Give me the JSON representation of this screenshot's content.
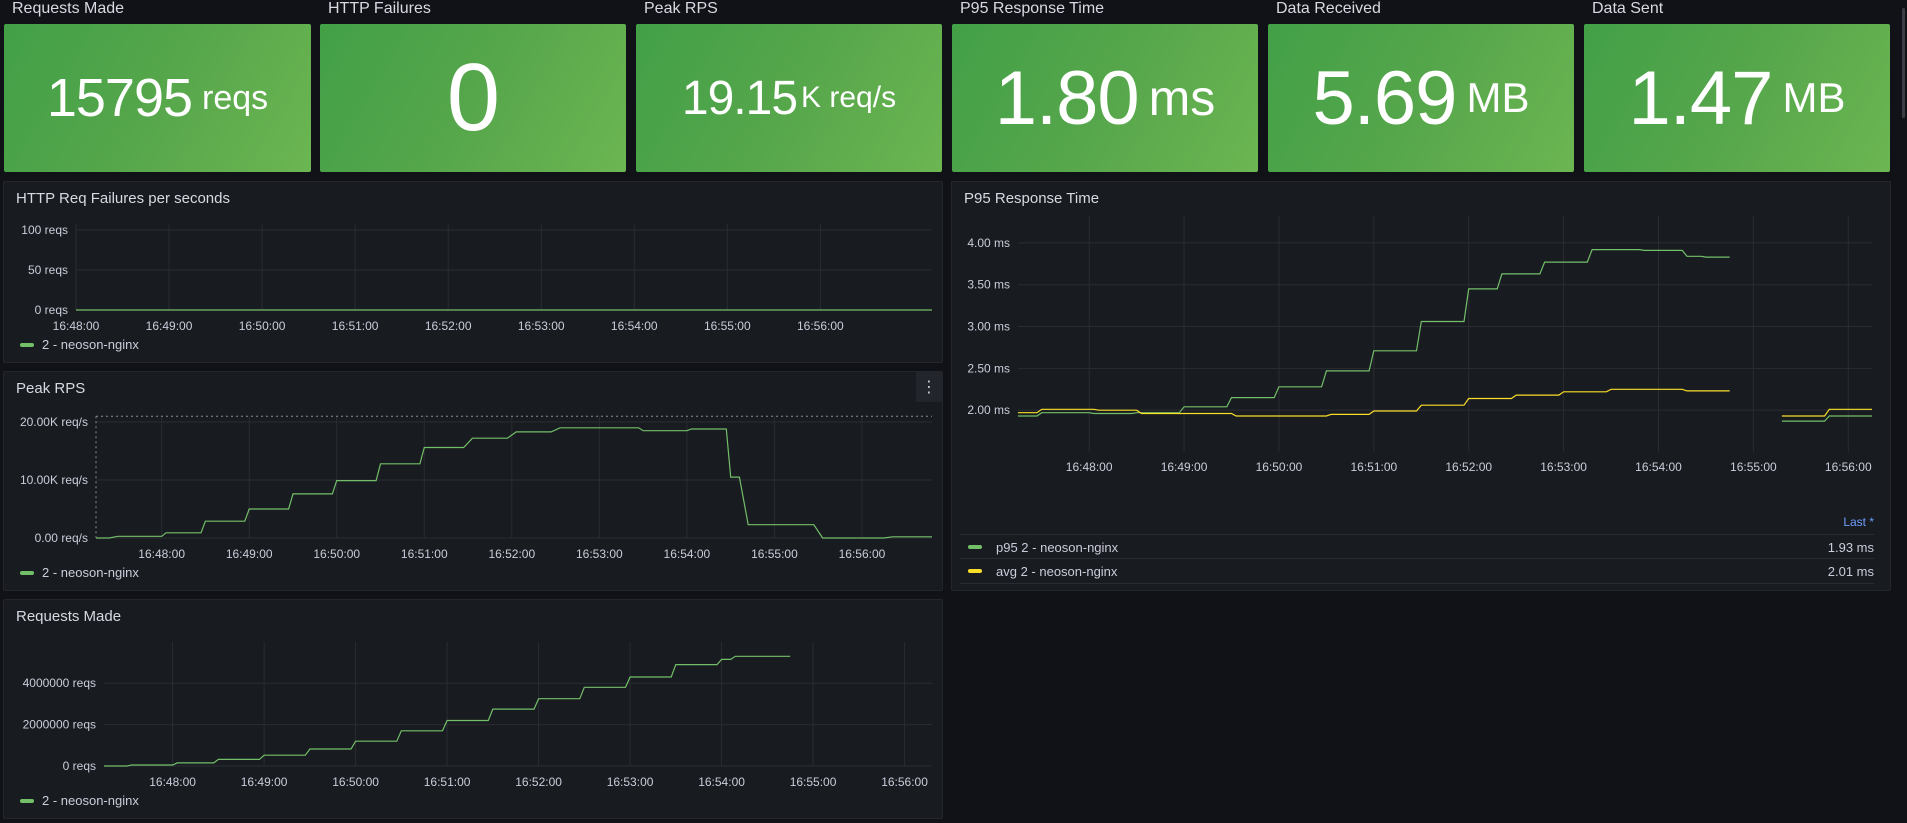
{
  "stats": [
    {
      "title": "Requests Made",
      "value": "15795",
      "unit": "reqs"
    },
    {
      "title": "HTTP Failures",
      "value": "0",
      "unit": ""
    },
    {
      "title": "Peak RPS",
      "value": "19.15",
      "unit": "K req/s"
    },
    {
      "title": "P95 Response Time",
      "value": "1.80",
      "unit": "ms"
    },
    {
      "title": "Data Received",
      "value": "5.69",
      "unit": "MB"
    },
    {
      "title": "Data Sent",
      "value": "1.47",
      "unit": "MB"
    }
  ],
  "panels": {
    "failures": {
      "title": "HTTP Req Failures per seconds"
    },
    "peak_rps": {
      "title": "Peak RPS"
    },
    "requests": {
      "title": "Requests Made"
    },
    "p95": {
      "title": "P95 Response Time",
      "last_header": "Last *"
    }
  },
  "colors": {
    "green": "#73bf69",
    "yellow": "#fade2a",
    "grid": "#2a2c33",
    "stat_bg": "#56a64b"
  },
  "icons": {
    "panel_menu": "vertical-ellipsis-icon"
  },
  "menu_glyph": "⋮",
  "chart_data": [
    {
      "id": "failures",
      "type": "line",
      "title": "HTTP Req Failures per seconds",
      "x": [
        "16:48:00",
        "16:49:00",
        "16:50:00",
        "16:51:00",
        "16:52:00",
        "16:53:00",
        "16:54:00",
        "16:55:00",
        "16:56:00"
      ],
      "xlim": [
        0,
        9.2
      ],
      "ylim": [
        0,
        100
      ],
      "yticks": [
        {
          "v": 100,
          "label": "100 reqs"
        },
        {
          "v": 50,
          "label": "50 reqs"
        },
        {
          "v": 0,
          "label": "0 reqs"
        }
      ],
      "series": [
        {
          "name": "2 - neoson-nginx",
          "color": "#73bf69",
          "points": [
            [
              0,
              0
            ],
            [
              9.2,
              0
            ]
          ]
        }
      ]
    },
    {
      "id": "peak_rps",
      "type": "line",
      "title": "Peak RPS",
      "x": [
        "16:48:00",
        "16:49:00",
        "16:50:00",
        "16:51:00",
        "16:52:00",
        "16:53:00",
        "16:54:00",
        "16:55:00",
        "16:56:00"
      ],
      "xlim": [
        -0.75,
        8.8
      ],
      "ylim": [
        0,
        20000
      ],
      "threshold": 21000,
      "yticks": [
        {
          "v": 20000,
          "label": "20.00K req/s"
        },
        {
          "v": 10000,
          "label": "10.00K req/s"
        },
        {
          "v": 0,
          "label": "0.00 req/s"
        }
      ],
      "series": [
        {
          "name": "2 - neoson-nginx",
          "color": "#73bf69",
          "points": [
            [
              -0.75,
              0
            ],
            [
              -0.6,
              0
            ],
            [
              -0.5,
              300
            ],
            [
              0,
              300
            ],
            [
              0.05,
              900
            ],
            [
              0.45,
              900
            ],
            [
              0.5,
              2900
            ],
            [
              0.95,
              2900
            ],
            [
              1,
              5000
            ],
            [
              1.45,
              5000
            ],
            [
              1.5,
              7600
            ],
            [
              1.95,
              7600
            ],
            [
              2,
              9900
            ],
            [
              2.45,
              9900
            ],
            [
              2.5,
              12800
            ],
            [
              2.95,
              12800
            ],
            [
              3,
              15600
            ],
            [
              3.45,
              15600
            ],
            [
              3.55,
              17200
            ],
            [
              3.95,
              17200
            ],
            [
              4.05,
              18300
            ],
            [
              4.45,
              18300
            ],
            [
              4.55,
              19000
            ],
            [
              5.45,
              19000
            ],
            [
              5.5,
              18500
            ],
            [
              6,
              18500
            ],
            [
              6.05,
              18800
            ],
            [
              6.45,
              18800
            ],
            [
              6.5,
              10500
            ],
            [
              6.6,
              10500
            ],
            [
              6.7,
              2300
            ],
            [
              7.45,
              2300
            ],
            [
              7.55,
              0
            ],
            [
              8.25,
              0
            ],
            [
              8.35,
              200
            ],
            [
              8.8,
              200
            ]
          ]
        }
      ]
    },
    {
      "id": "requests",
      "type": "line",
      "title": "Requests Made",
      "x": [
        "16:48:00",
        "16:49:00",
        "16:50:00",
        "16:51:00",
        "16:52:00",
        "16:53:00",
        "16:54:00",
        "16:55:00",
        "16:56:00"
      ],
      "xlim": [
        -0.75,
        8.3
      ],
      "ylim": [
        0,
        5700000
      ],
      "yticks": [
        {
          "v": 4000000,
          "label": "4000000 reqs"
        },
        {
          "v": 2000000,
          "label": "2000000 reqs"
        },
        {
          "v": 0,
          "label": "0 reqs"
        }
      ],
      "series": [
        {
          "name": "2 - neoson-nginx",
          "color": "#73bf69",
          "points": [
            [
              -0.75,
              0
            ],
            [
              -0.5,
              0
            ],
            [
              -0.45,
              50000
            ],
            [
              0,
              50000
            ],
            [
              0.05,
              150000
            ],
            [
              0.45,
              150000
            ],
            [
              0.5,
              320000
            ],
            [
              0.95,
              320000
            ],
            [
              1,
              520000
            ],
            [
              1.45,
              520000
            ],
            [
              1.5,
              820000
            ],
            [
              1.95,
              820000
            ],
            [
              2,
              1200000
            ],
            [
              2.45,
              1200000
            ],
            [
              2.5,
              1700000
            ],
            [
              2.95,
              1700000
            ],
            [
              3,
              2200000
            ],
            [
              3.45,
              2200000
            ],
            [
              3.5,
              2750000
            ],
            [
              3.95,
              2750000
            ],
            [
              4,
              3250000
            ],
            [
              4.45,
              3250000
            ],
            [
              4.5,
              3800000
            ],
            [
              4.95,
              3800000
            ],
            [
              5,
              4300000
            ],
            [
              5.45,
              4300000
            ],
            [
              5.5,
              4900000
            ],
            [
              5.95,
              4900000
            ],
            [
              6,
              5150000
            ],
            [
              6.1,
              5150000
            ],
            [
              6.15,
              5300000
            ],
            [
              6.75,
              5300000
            ]
          ]
        }
      ]
    },
    {
      "id": "p95",
      "type": "line",
      "title": "P95 Response Time",
      "x": [
        "16:48:00",
        "16:49:00",
        "16:50:00",
        "16:51:00",
        "16:52:00",
        "16:53:00",
        "16:54:00",
        "16:55:00",
        "16:56:00"
      ],
      "xlim": [
        -0.75,
        8.25
      ],
      "ylim": [
        1.5,
        4.25
      ],
      "yticks": [
        {
          "v": 4.0,
          "label": "4.00 ms"
        },
        {
          "v": 3.5,
          "label": "3.50 ms"
        },
        {
          "v": 3.0,
          "label": "3.00 ms"
        },
        {
          "v": 2.5,
          "label": "2.50 ms"
        },
        {
          "v": 2.0,
          "label": "2.00 ms"
        }
      ],
      "series": [
        {
          "name": "p95 2 - neoson-nginx",
          "last": "1.93 ms",
          "color": "#73bf69",
          "segments": [
            [
              [
                -0.75,
                1.93
              ],
              [
                -0.55,
                1.93
              ],
              [
                -0.5,
                1.97
              ],
              [
                0,
                1.97
              ],
              [
                0.05,
                1.96
              ],
              [
                0.45,
                1.96
              ],
              [
                0.5,
                1.97
              ],
              [
                0.95,
                1.97
              ],
              [
                1,
                2.04
              ],
              [
                1.45,
                2.04
              ],
              [
                1.5,
                2.15
              ],
              [
                1.95,
                2.15
              ],
              [
                2,
                2.28
              ],
              [
                2.45,
                2.28
              ],
              [
                2.5,
                2.47
              ],
              [
                2.95,
                2.47
              ],
              [
                3,
                2.71
              ],
              [
                3.45,
                2.71
              ],
              [
                3.5,
                3.06
              ],
              [
                3.95,
                3.06
              ],
              [
                4,
                3.45
              ],
              [
                4.3,
                3.45
              ],
              [
                4.35,
                3.63
              ],
              [
                4.75,
                3.63
              ],
              [
                4.8,
                3.77
              ],
              [
                5.25,
                3.77
              ],
              [
                5.3,
                3.92
              ],
              [
                5.8,
                3.92
              ],
              [
                5.85,
                3.91
              ],
              [
                6.25,
                3.91
              ],
              [
                6.3,
                3.84
              ],
              [
                6.45,
                3.84
              ],
              [
                6.5,
                3.83
              ],
              [
                6.75,
                3.83
              ]
            ],
            [
              [
                7.3,
                1.87
              ],
              [
                7.75,
                1.87
              ],
              [
                7.8,
                1.93
              ],
              [
                8.25,
                1.93
              ]
            ]
          ]
        },
        {
          "name": "avg 2 - neoson-nginx",
          "last": "2.01 ms",
          "color": "#fade2a",
          "segments": [
            [
              [
                -0.75,
                1.97
              ],
              [
                -0.55,
                1.97
              ],
              [
                -0.5,
                2.01
              ],
              [
                0.05,
                2.01
              ],
              [
                0.1,
                2.0
              ],
              [
                0.5,
                2.0
              ],
              [
                0.55,
                1.96
              ],
              [
                1.5,
                1.96
              ],
              [
                1.55,
                1.93
              ],
              [
                2.5,
                1.93
              ],
              [
                2.55,
                1.95
              ],
              [
                2.95,
                1.95
              ],
              [
                3,
                1.99
              ],
              [
                3.45,
                1.99
              ],
              [
                3.5,
                2.06
              ],
              [
                3.95,
                2.06
              ],
              [
                4,
                2.14
              ],
              [
                4.45,
                2.14
              ],
              [
                4.5,
                2.18
              ],
              [
                4.95,
                2.18
              ],
              [
                5,
                2.22
              ],
              [
                5.45,
                2.22
              ],
              [
                5.5,
                2.25
              ],
              [
                6.25,
                2.25
              ],
              [
                6.3,
                2.23
              ],
              [
                6.75,
                2.23
              ]
            ],
            [
              [
                7.3,
                1.93
              ],
              [
                7.75,
                1.93
              ],
              [
                7.8,
                2.01
              ],
              [
                8.25,
                2.01
              ]
            ]
          ]
        }
      ]
    }
  ]
}
